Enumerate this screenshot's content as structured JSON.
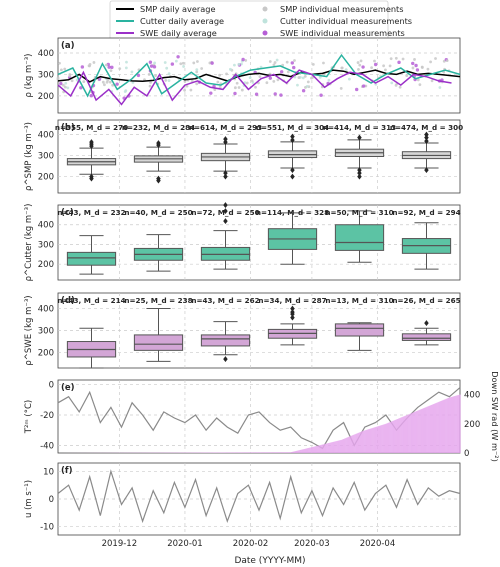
{
  "legend": {
    "entries": [
      {
        "label": "SMP daily average",
        "color": "#000000",
        "kind": "line"
      },
      {
        "label": "Cutter daily average",
        "color": "#2ab3a0",
        "kind": "line"
      },
      {
        "label": "SWE daily average",
        "color": "#9b30c8",
        "kind": "line"
      },
      {
        "label": "SMP individual measurements",
        "color": "#c8c8c8",
        "kind": "dot"
      },
      {
        "label": "Cutter individual measurements",
        "color": "#bfe3dc",
        "kind": "dot"
      },
      {
        "label": "SWE individual measurements",
        "color": "#b65fd6",
        "kind": "dot"
      }
    ]
  },
  "xaxis": {
    "label": "Date (YYYY-MM)",
    "ticks": [
      "2019-12",
      "2020-01",
      "2020-02",
      "2020-03",
      "2020-04"
    ],
    "range": [
      "2019-11-02",
      "2020-05-10"
    ]
  },
  "chart_data": [
    {
      "id": "a",
      "type": "line",
      "panel_label": "(a)",
      "ylabel": "ρ (kg m⁻³)",
      "ylim": [
        120,
        470
      ],
      "yticks": [
        200,
        300,
        400
      ],
      "series": [
        {
          "name": "SMP daily average",
          "color": "#000000",
          "x": [
            "2019-11-02",
            "2019-11-07",
            "2019-11-12",
            "2019-11-17",
            "2019-11-22",
            "2019-11-27",
            "2019-12-02",
            "2019-12-07",
            "2019-12-12",
            "2019-12-17",
            "2019-12-22",
            "2019-12-27",
            "2020-01-01",
            "2020-01-06",
            "2020-01-11",
            "2020-01-16",
            "2020-01-21",
            "2020-01-26",
            "2020-01-31",
            "2020-02-05",
            "2020-02-10",
            "2020-02-15",
            "2020-02-20",
            "2020-02-25",
            "2020-03-01",
            "2020-03-06",
            "2020-03-11",
            "2020-03-16",
            "2020-03-21",
            "2020-03-26",
            "2020-03-31",
            "2020-04-05",
            "2020-04-10",
            "2020-04-15",
            "2020-04-20",
            "2020-04-25",
            "2020-04-30",
            "2020-05-05",
            "2020-05-10"
          ],
          "y": [
            270,
            275,
            300,
            265,
            290,
            280,
            275,
            270,
            268,
            272,
            285,
            290,
            275,
            280,
            300,
            285,
            270,
            290,
            300,
            305,
            295,
            300,
            290,
            310,
            300,
            305,
            320,
            315,
            300,
            310,
            320,
            305,
            300,
            315,
            300,
            305,
            300,
            295,
            290
          ]
        },
        {
          "name": "Cutter daily average",
          "color": "#2ab3a0",
          "x": [
            "2019-11-02",
            "2019-11-09",
            "2019-11-16",
            "2019-11-23",
            "2019-11-30",
            "2019-12-07",
            "2019-12-14",
            "2019-12-21",
            "2019-12-28",
            "2020-01-04",
            "2020-01-11",
            "2020-01-18",
            "2020-01-25",
            "2020-02-01",
            "2020-02-08",
            "2020-02-15",
            "2020-02-22",
            "2020-03-01",
            "2020-03-08",
            "2020-03-15",
            "2020-03-22",
            "2020-03-29",
            "2020-04-05",
            "2020-04-12",
            "2020-04-19",
            "2020-04-26",
            "2020-05-03",
            "2020-05-10"
          ],
          "y": [
            300,
            330,
            200,
            350,
            230,
            280,
            350,
            210,
            260,
            310,
            260,
            250,
            290,
            320,
            330,
            340,
            310,
            300,
            290,
            390,
            300,
            260,
            300,
            330,
            280,
            300,
            320,
            300
          ]
        },
        {
          "name": "SWE daily average",
          "color": "#9b30c8",
          "x": [
            "2019-11-02",
            "2019-11-08",
            "2019-11-14",
            "2019-11-20",
            "2019-11-26",
            "2019-12-02",
            "2019-12-08",
            "2019-12-14",
            "2019-12-20",
            "2019-12-26",
            "2020-01-01",
            "2020-01-07",
            "2020-01-13",
            "2020-01-19",
            "2020-01-25",
            "2020-01-31",
            "2020-02-06",
            "2020-02-12",
            "2020-02-18",
            "2020-02-24",
            "2020-03-01",
            "2020-03-07",
            "2020-03-13",
            "2020-03-19",
            "2020-03-25",
            "2020-03-31",
            "2020-04-06",
            "2020-04-12",
            "2020-04-18",
            "2020-04-24",
            "2020-04-30",
            "2020-05-06"
          ],
          "y": [
            250,
            200,
            310,
            180,
            230,
            160,
            240,
            200,
            300,
            180,
            250,
            270,
            240,
            230,
            300,
            230,
            280,
            300,
            260,
            320,
            300,
            240,
            280,
            310,
            300,
            260,
            290,
            250,
            300,
            290,
            270,
            260
          ]
        }
      ]
    },
    {
      "id": "b",
      "type": "box",
      "panel_label": "(b)",
      "ylabel": "ρ^SMP (kg m⁻³)",
      "ylim": [
        120,
        470
      ],
      "yticks": [
        200,
        300,
        400
      ],
      "color": "#d6d6d6",
      "boxes": [
        {
          "label": "n=355, M_d = 270",
          "whislo": 210,
          "q1": 255,
          "med": 270,
          "q3": 285,
          "whishi": 335,
          "fliers": [
            345,
            355,
            365,
            190,
            200
          ]
        },
        {
          "label": "n=232, M_d = 284",
          "whislo": 225,
          "q1": 268,
          "med": 284,
          "q3": 298,
          "whishi": 340,
          "fliers": [
            350,
            360,
            190,
            180
          ]
        },
        {
          "label": "n=614, M_d = 293",
          "whislo": 225,
          "q1": 275,
          "med": 293,
          "q3": 310,
          "whishi": 355,
          "fliers": [
            365,
            380,
            215,
            200
          ]
        },
        {
          "label": "n=551, M_d = 304",
          "whislo": 240,
          "q1": 290,
          "med": 304,
          "q3": 322,
          "whishi": 365,
          "fliers": [
            375,
            390,
            230,
            200
          ]
        },
        {
          "label": "n=414, M_d = 313",
          "whislo": 240,
          "q1": 295,
          "med": 313,
          "q3": 330,
          "whishi": 375,
          "fliers": [
            385,
            230,
            215,
            200
          ]
        },
        {
          "label": "n=474, M_d = 300",
          "whislo": 240,
          "q1": 285,
          "med": 300,
          "q3": 318,
          "whishi": 360,
          "fliers": [
            370,
            385,
            400,
            230
          ]
        }
      ]
    },
    {
      "id": "c",
      "type": "box",
      "panel_label": "(c)",
      "ylabel": "ρ^Cutter (kg m⁻³)",
      "ylim": [
        120,
        500
      ],
      "yticks": [
        200,
        300,
        400
      ],
      "color": "#5cc3a4",
      "boxes": [
        {
          "label": "n=43, M_d = 232",
          "whislo": 150,
          "q1": 195,
          "med": 232,
          "q3": 260,
          "whishi": 345,
          "fliers": []
        },
        {
          "label": "n=40, M_d = 250",
          "whislo": 165,
          "q1": 220,
          "med": 250,
          "q3": 280,
          "whishi": 350,
          "fliers": []
        },
        {
          "label": "n=72, M_d = 250",
          "whislo": 175,
          "q1": 220,
          "med": 250,
          "q3": 285,
          "whishi": 370,
          "fliers": [
            420,
            470,
            500
          ]
        },
        {
          "label": "n=114, M_d = 328",
          "whislo": 200,
          "q1": 275,
          "med": 328,
          "q3": 380,
          "whishi": 460,
          "fliers": []
        },
        {
          "label": "n=50, M_d = 310",
          "whislo": 210,
          "q1": 270,
          "med": 310,
          "q3": 400,
          "whishi": 470,
          "fliers": []
        },
        {
          "label": "n=92, M_d = 294",
          "whislo": 175,
          "q1": 255,
          "med": 294,
          "q3": 330,
          "whishi": 410,
          "fliers": []
        }
      ]
    },
    {
      "id": "d",
      "type": "box",
      "panel_label": "(d)",
      "ylabel": "ρ^SWE (kg m⁻³)",
      "ylim": [
        130,
        470
      ],
      "yticks": [
        200,
        300,
        400
      ],
      "color": "#d3a6d6",
      "boxes": [
        {
          "label": "n=43, M_d = 214",
          "whislo": 130,
          "q1": 180,
          "med": 214,
          "q3": 250,
          "whishi": 310,
          "fliers": []
        },
        {
          "label": "n=25, M_d = 238",
          "whislo": 160,
          "q1": 210,
          "med": 238,
          "q3": 280,
          "whishi": 400,
          "fliers": []
        },
        {
          "label": "n=43, M_d = 262",
          "whislo": 190,
          "q1": 230,
          "med": 262,
          "q3": 280,
          "whishi": 340,
          "fliers": [
            170
          ]
        },
        {
          "label": "n=34, M_d = 287",
          "whislo": 235,
          "q1": 265,
          "med": 287,
          "q3": 305,
          "whishi": 330,
          "fliers": [
            360,
            375,
            385,
            400
          ]
        },
        {
          "label": "n=13, M_d = 310",
          "whislo": 210,
          "q1": 275,
          "med": 310,
          "q3": 330,
          "whishi": 335,
          "fliers": []
        },
        {
          "label": "n=26, M_d = 265",
          "whislo": 235,
          "q1": 255,
          "med": 265,
          "q3": 285,
          "whishi": 310,
          "fliers": [
            335
          ]
        }
      ]
    },
    {
      "id": "e",
      "type": "line",
      "panel_label": "(e)",
      "ylabel": "T²ᵐ (°C)",
      "ylim": [
        -45,
        3
      ],
      "yticks": [
        -40,
        -20,
        0
      ],
      "ylabel_right": "Down SW rad (W m⁻²)",
      "ylim_right": [
        0,
        500
      ],
      "yticks_right": [
        0,
        200,
        400
      ],
      "series": [
        {
          "name": "T2m",
          "color": "#8a8a8a",
          "axis": "left",
          "x": [
            "2019-11-02",
            "2019-11-07",
            "2019-11-12",
            "2019-11-17",
            "2019-11-22",
            "2019-11-27",
            "2019-12-02",
            "2019-12-07",
            "2019-12-12",
            "2019-12-17",
            "2019-12-22",
            "2019-12-27",
            "2020-01-01",
            "2020-01-06",
            "2020-01-11",
            "2020-01-16",
            "2020-01-21",
            "2020-01-26",
            "2020-01-31",
            "2020-02-05",
            "2020-02-10",
            "2020-02-15",
            "2020-02-20",
            "2020-02-25",
            "2020-03-01",
            "2020-03-06",
            "2020-03-11",
            "2020-03-16",
            "2020-03-21",
            "2020-03-26",
            "2020-03-31",
            "2020-04-05",
            "2020-04-10",
            "2020-04-15",
            "2020-04-20",
            "2020-04-25",
            "2020-04-30",
            "2020-05-05",
            "2020-05-10"
          ],
          "y": [
            -12,
            -8,
            -18,
            -5,
            -25,
            -15,
            -28,
            -12,
            -20,
            -30,
            -18,
            -22,
            -25,
            -20,
            -30,
            -22,
            -28,
            -32,
            -20,
            -18,
            -25,
            -30,
            -28,
            -35,
            -38,
            -42,
            -30,
            -25,
            -40,
            -28,
            -25,
            -20,
            -30,
            -22,
            -15,
            -10,
            -5,
            -8,
            -2
          ]
        },
        {
          "name": "Down SW rad",
          "color": "#e6a6ee",
          "axis": "right",
          "x": [
            "2019-11-02",
            "2020-02-20",
            "2020-03-01",
            "2020-03-15",
            "2020-03-25",
            "2020-04-05",
            "2020-04-15",
            "2020-04-25",
            "2020-05-05",
            "2020-05-10"
          ],
          "y": [
            0,
            5,
            40,
            90,
            150,
            200,
            260,
            320,
            380,
            400
          ]
        }
      ]
    },
    {
      "id": "f",
      "type": "line",
      "panel_label": "(f)",
      "ylabel": "u (m s⁻¹)",
      "ylim": [
        -13,
        13
      ],
      "yticks": [
        -10,
        0,
        10
      ],
      "series": [
        {
          "name": "u",
          "color": "#8a8a8a",
          "x": [
            "2019-11-02",
            "2019-11-07",
            "2019-11-12",
            "2019-11-17",
            "2019-11-22",
            "2019-11-27",
            "2019-12-02",
            "2019-12-07",
            "2019-12-12",
            "2019-12-17",
            "2019-12-22",
            "2019-12-27",
            "2020-01-01",
            "2020-01-06",
            "2020-01-11",
            "2020-01-16",
            "2020-01-21",
            "2020-01-26",
            "2020-01-31",
            "2020-02-05",
            "2020-02-10",
            "2020-02-15",
            "2020-02-20",
            "2020-02-25",
            "2020-03-01",
            "2020-03-06",
            "2020-03-11",
            "2020-03-16",
            "2020-03-21",
            "2020-03-26",
            "2020-03-31",
            "2020-04-05",
            "2020-04-10",
            "2020-04-15",
            "2020-04-20",
            "2020-04-25",
            "2020-04-30",
            "2020-05-05",
            "2020-05-10"
          ],
          "y": [
            2,
            5,
            -4,
            8,
            -6,
            10,
            -2,
            4,
            -8,
            3,
            -5,
            6,
            -3,
            7,
            -6,
            4,
            -8,
            2,
            5,
            -4,
            6,
            -7,
            8,
            -5,
            3,
            -6,
            4,
            -2,
            6,
            -4,
            2,
            5,
            -3,
            7,
            -2,
            4,
            1,
            3,
            2
          ]
        }
      ]
    }
  ]
}
